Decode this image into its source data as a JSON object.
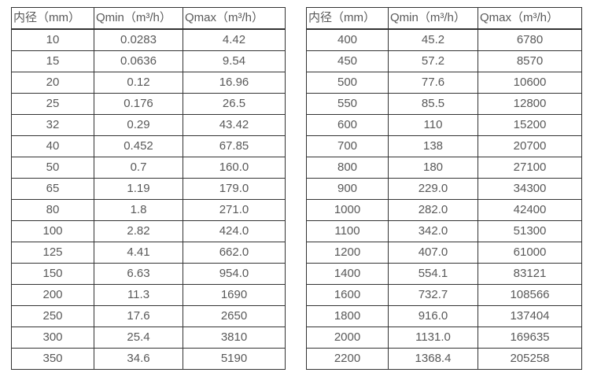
{
  "colors": {
    "border": "#333333",
    "text": "#595959",
    "background": "#ffffff"
  },
  "tables": [
    {
      "id": "flow-table-small-diameters",
      "headers": [
        "内径（mm）",
        "Qmin（m³/h）",
        "Qmax（m³/h）"
      ],
      "rows": [
        [
          "10",
          "0.0283",
          "4.42"
        ],
        [
          "15",
          "0.0636",
          "9.54"
        ],
        [
          "20",
          "0.12",
          "16.96"
        ],
        [
          "25",
          "0.176",
          "26.5"
        ],
        [
          "32",
          "0.29",
          "43.42"
        ],
        [
          "40",
          "0.452",
          "67.85"
        ],
        [
          "50",
          "0.7",
          "160.0"
        ],
        [
          "65",
          "1.19",
          "179.0"
        ],
        [
          "80",
          "1.8",
          "271.0"
        ],
        [
          "100",
          "2.82",
          "424.0"
        ],
        [
          "125",
          "4.41",
          "662.0"
        ],
        [
          "150",
          "6.63",
          "954.0"
        ],
        [
          "200",
          "11.3",
          "1690"
        ],
        [
          "250",
          "17.6",
          "2650"
        ],
        [
          "300",
          "25.4",
          "3810"
        ],
        [
          "350",
          "34.6",
          "5190"
        ]
      ]
    },
    {
      "id": "flow-table-large-diameters",
      "headers": [
        "内径（mm）",
        "Qmin（m³/h）",
        "Qmax（m³/h）"
      ],
      "rows": [
        [
          "400",
          "45.2",
          "6780"
        ],
        [
          "450",
          "57.2",
          "8570"
        ],
        [
          "500",
          "77.6",
          "10600"
        ],
        [
          "550",
          "85.5",
          "12800"
        ],
        [
          "600",
          "110",
          "15200"
        ],
        [
          "700",
          "138",
          "20700"
        ],
        [
          "800",
          "180",
          "27100"
        ],
        [
          "900",
          "229.0",
          "34300"
        ],
        [
          "1000",
          "282.0",
          "42400"
        ],
        [
          "1100",
          "342.0",
          "51300"
        ],
        [
          "1200",
          "407.0",
          "61000"
        ],
        [
          "1400",
          "554.1",
          "83121"
        ],
        [
          "1600",
          "732.7",
          "108566"
        ],
        [
          "1800",
          "916.0",
          "137404"
        ],
        [
          "2000",
          "1131.0",
          "169635"
        ],
        [
          "2200",
          "1368.4",
          "205258"
        ]
      ]
    }
  ]
}
